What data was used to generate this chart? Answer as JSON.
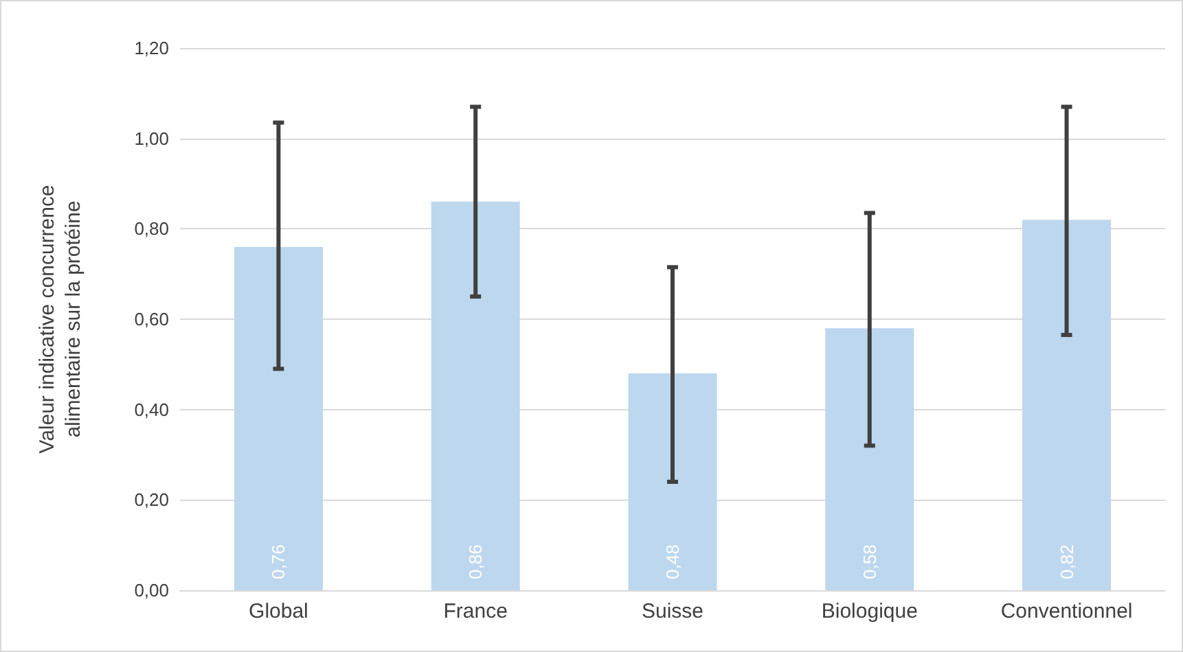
{
  "chart_data": {
    "type": "bar",
    "ylabel": "Valeur indicative concurrence\nalimentaire sur la protéine",
    "categories": [
      "Global",
      "France",
      "Suisse",
      "Biologique",
      "Conventionnel"
    ],
    "values": [
      0.76,
      0.86,
      0.48,
      0.58,
      0.82
    ],
    "value_labels": [
      "0,76",
      "0,86",
      "0,48",
      "0,58",
      "0,82"
    ],
    "errors": [
      [
        0.49,
        1.035
      ],
      [
        0.65,
        1.07
      ],
      [
        0.24,
        0.715
      ],
      [
        0.32,
        0.835
      ],
      [
        0.565,
        1.07
      ]
    ],
    "color": "#bdd7ee",
    "ylim": [
      0,
      1.2
    ],
    "yticks": [
      {
        "value": 0,
        "label": "0,00"
      },
      {
        "value": 0.2,
        "label": "0,20"
      },
      {
        "value": 0.4,
        "label": "0,40"
      },
      {
        "value": 0.6,
        "label": "0,60"
      },
      {
        "value": 0.8,
        "label": "0,80"
      },
      {
        "value": 1.0,
        "label": "1,00"
      },
      {
        "value": 1.2,
        "label": "1,20"
      }
    ],
    "grid": "y"
  }
}
